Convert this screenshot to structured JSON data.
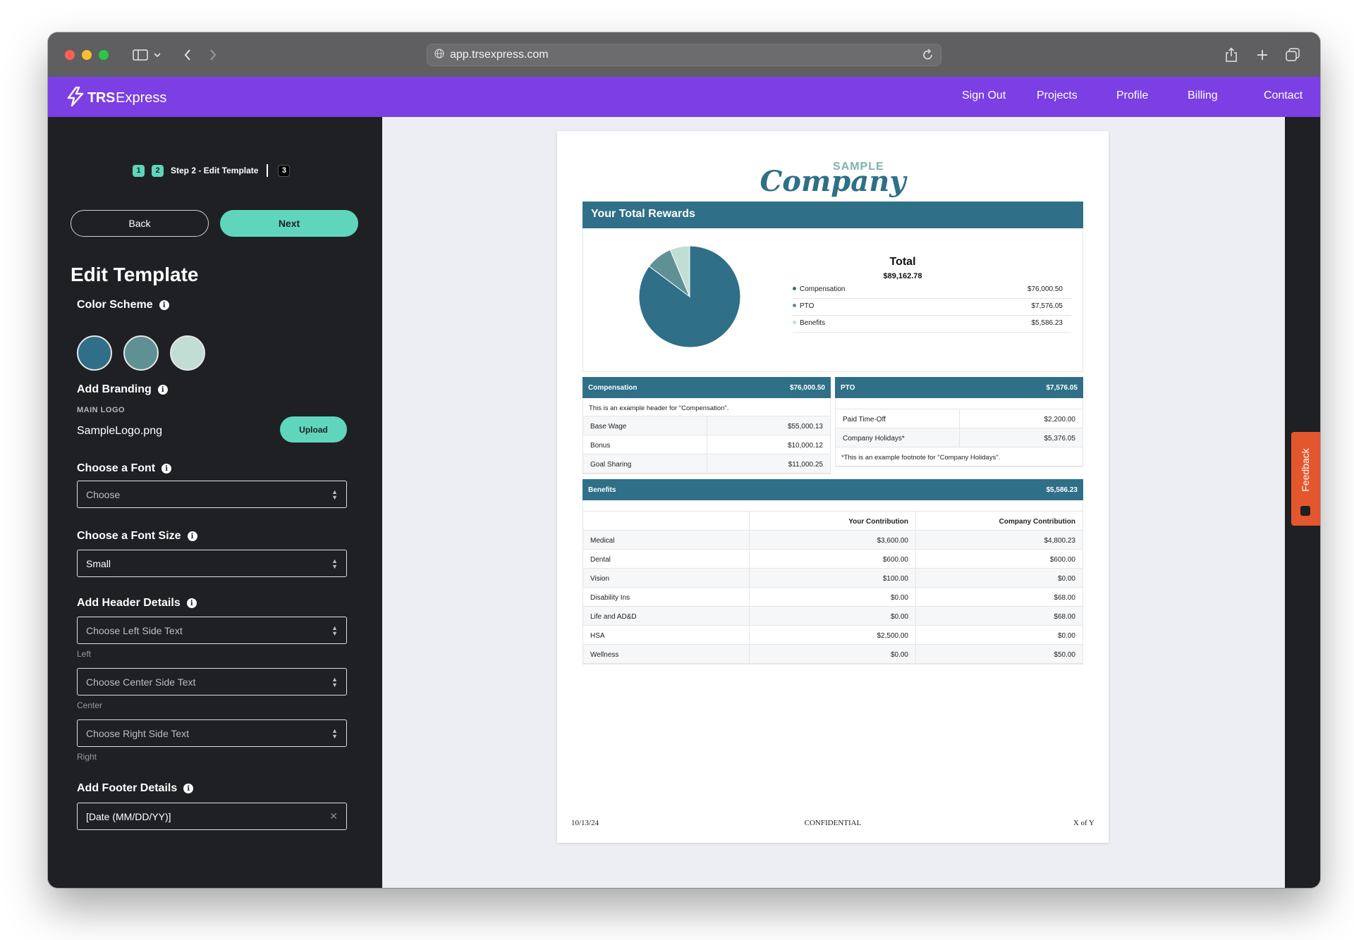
{
  "browser": {
    "url": "app.trsexpress.com"
  },
  "navbar": {
    "brand_bold": "TRS",
    "brand_light": "Express",
    "links": [
      "Sign Out",
      "Projects",
      "Profile",
      "Billing",
      "Contact"
    ]
  },
  "sidebar": {
    "steps": {
      "step1": "1",
      "step2": "2",
      "current_label": "Step 2 - Edit Template",
      "step3": "3"
    },
    "back_label": "Back",
    "next_label": "Next",
    "title": "Edit Template",
    "color_scheme": {
      "label": "Color Scheme",
      "colors": [
        "#2f6f88",
        "#5f9194",
        "#c1ddd4"
      ]
    },
    "branding": {
      "label": "Add Branding",
      "main_logo_label": "MAIN LOGO",
      "file_name": "SampleLogo.png",
      "upload_label": "Upload"
    },
    "font": {
      "label": "Choose a Font",
      "value": "Choose"
    },
    "font_size": {
      "label": "Choose a Font Size",
      "value": "Small"
    },
    "header": {
      "label": "Add Header Details",
      "left_placeholder": "Choose Left Side Text",
      "left_helper": "Left",
      "center_placeholder": "Choose Center Side Text",
      "center_helper": "Center",
      "right_placeholder": "Choose Right Side Text",
      "right_helper": "Right"
    },
    "footer": {
      "label": "Add Footer Details",
      "left_value": "[Date (MM/DD/YY)]"
    }
  },
  "feedback_label": "Feedback",
  "document": {
    "logo_small": "SAMPLE",
    "logo_large": "Company",
    "title": "Your Total Rewards",
    "total_label": "Total",
    "total_value": "$89,162.78",
    "legend": [
      {
        "label": "Compensation",
        "value": "$76,000.50",
        "color": "#2f6f88"
      },
      {
        "label": "PTO",
        "value": "$7,576.05",
        "color": "#5f9194"
      },
      {
        "label": "Benefits",
        "value": "$5,586.23",
        "color": "#c1ddd4"
      }
    ],
    "compensation": {
      "title": "Compensation",
      "total": "$76,000.50",
      "note": "This is an example header for \"Compensation\".",
      "rows": [
        {
          "label": "Base Wage",
          "value": "$55,000.13"
        },
        {
          "label": "Bonus",
          "value": "$10,000.12"
        },
        {
          "label": "Goal Sharing",
          "value": "$11,000.25"
        }
      ]
    },
    "pto": {
      "title": "PTO",
      "total": "$7,576.05",
      "rows": [
        {
          "label": "Paid Time-Off",
          "value": "$2,200.00"
        },
        {
          "label": "Company Holidays*",
          "value": "$5,376.05"
        }
      ],
      "footnote": "*This is an example footnote for \"Company Holidays\"."
    },
    "benefits": {
      "title": "Benefits",
      "total": "$5,586.23",
      "col_your": "Your Contribution",
      "col_company": "Company Contribution",
      "rows": [
        {
          "label": "Medical",
          "your": "$3,600.00",
          "company": "$4,800.23"
        },
        {
          "label": "Dental",
          "your": "$600.00",
          "company": "$600.00"
        },
        {
          "label": "Vision",
          "your": "$100.00",
          "company": "$0.00"
        },
        {
          "label": "Disability Ins",
          "your": "$0.00",
          "company": "$68.00"
        },
        {
          "label": "Life and AD&D",
          "your": "$0.00",
          "company": "$68.00"
        },
        {
          "label": "HSA",
          "your": "$2,500.00",
          "company": "$0.00"
        },
        {
          "label": "Wellness",
          "your": "$0.00",
          "company": "$50.00"
        }
      ]
    },
    "footer": {
      "left": "10/13/24",
      "center": "CONFIDENTIAL",
      "right": "X of Y"
    }
  }
}
